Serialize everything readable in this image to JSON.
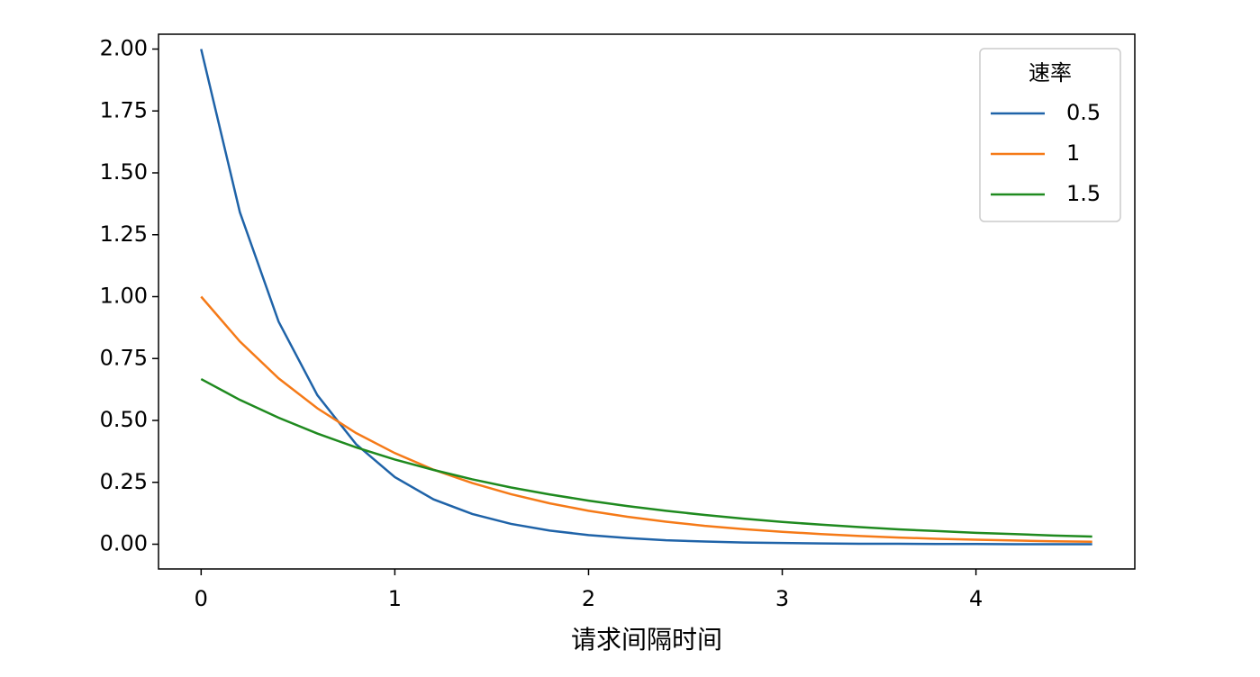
{
  "chart_data": {
    "type": "line",
    "x_label": "请求间隔时间",
    "x": [
      0,
      0.2,
      0.4,
      0.6,
      0.8,
      1.0,
      1.2,
      1.4,
      1.6,
      1.8,
      2.0,
      2.2,
      2.4,
      2.6,
      2.8,
      3.0,
      3.2,
      3.4,
      3.6,
      3.8,
      4.0,
      4.2,
      4.4,
      4.6
    ],
    "legend_title": "速率",
    "legend_position": "upper right",
    "series": [
      {
        "name": "0.5",
        "color": "#1f63a8",
        "values": [
          2.0,
          1.341,
          0.899,
          0.602,
          0.404,
          0.271,
          0.181,
          0.122,
          0.082,
          0.055,
          0.037,
          0.025,
          0.016,
          0.011,
          0.007,
          0.005,
          0.003,
          0.002,
          0.002,
          0.001,
          0.001,
          0.0,
          0.0,
          0.0
        ]
      },
      {
        "name": "1",
        "color": "#f57a18",
        "values": [
          1.0,
          0.819,
          0.67,
          0.549,
          0.449,
          0.368,
          0.301,
          0.247,
          0.202,
          0.165,
          0.135,
          0.111,
          0.091,
          0.074,
          0.061,
          0.05,
          0.041,
          0.033,
          0.027,
          0.022,
          0.018,
          0.015,
          0.012,
          0.01
        ]
      },
      {
        "name": "1.5",
        "color": "#1f8a1f",
        "values": [
          0.667,
          0.583,
          0.511,
          0.447,
          0.391,
          0.342,
          0.3,
          0.262,
          0.229,
          0.201,
          0.176,
          0.154,
          0.135,
          0.118,
          0.103,
          0.09,
          0.079,
          0.069,
          0.06,
          0.053,
          0.046,
          0.041,
          0.035,
          0.031
        ]
      }
    ],
    "xlim": [
      -0.22,
      4.82
    ],
    "ylim": [
      -0.1,
      2.06
    ],
    "xticks": [
      0,
      1,
      2,
      3,
      4
    ],
    "yticks": [
      {
        "value": 0,
        "label": "0.00"
      },
      {
        "value": 0.25,
        "label": "0.25"
      },
      {
        "value": 0.5,
        "label": "0.50"
      },
      {
        "value": 0.75,
        "label": "0.75"
      },
      {
        "value": 1.0,
        "label": "1.00"
      },
      {
        "value": 1.25,
        "label": "1.25"
      },
      {
        "value": 1.5,
        "label": "1.50"
      },
      {
        "value": 1.75,
        "label": "1.75"
      },
      {
        "value": 2.0,
        "label": "2.00"
      }
    ],
    "grid": false
  }
}
